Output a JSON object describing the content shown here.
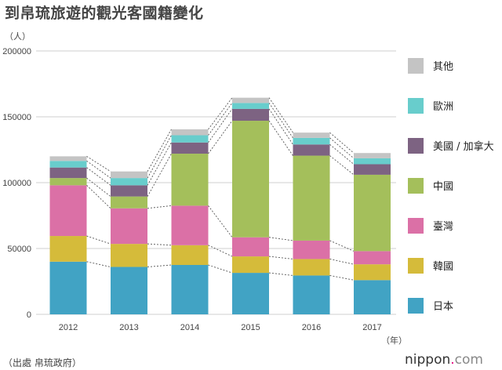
{
  "title": "到帛琉旅遊的觀光客國籍變化",
  "y_unit": "（人）",
  "x_unit": "（年）",
  "source": "（出處  帛琉政府）",
  "brand": {
    "prefix": "nippon",
    "dot": ".",
    "suffix": "com"
  },
  "chart_data": {
    "type": "bar",
    "stacked": true,
    "categories": [
      "2012",
      "2013",
      "2014",
      "2015",
      "2016",
      "2017"
    ],
    "ylim": [
      0,
      200000
    ],
    "yticks": [
      0,
      50000,
      100000,
      150000,
      200000
    ],
    "ytick_labels": [
      "0",
      "50000",
      "100000",
      "150000",
      "200000"
    ],
    "series": [
      {
        "name": "日本",
        "color": "#41a3c4",
        "values": [
          40000,
          36000,
          37500,
          31500,
          29500,
          26000
        ]
      },
      {
        "name": "韓國",
        "color": "#d5bb3a",
        "values": [
          19500,
          17500,
          15000,
          12500,
          12500,
          12000
        ]
      },
      {
        "name": "臺灣",
        "color": "#db70a6",
        "values": [
          38500,
          27000,
          30000,
          14500,
          14000,
          10000
        ]
      },
      {
        "name": "中國",
        "color": "#a4bf5b",
        "values": [
          5500,
          9000,
          39500,
          88500,
          64500,
          58000
        ]
      },
      {
        "name": "美國 / 加拿大",
        "color": "#7d6382",
        "values": [
          8000,
          8500,
          8500,
          9000,
          8500,
          8000
        ]
      },
      {
        "name": "歐洲",
        "color": "#68cdcc",
        "values": [
          5000,
          5500,
          5500,
          4500,
          5000,
          4500
        ]
      },
      {
        "name": "其他",
        "color": "#c4c4c4",
        "values": [
          3500,
          5000,
          4500,
          4000,
          4000,
          4000
        ]
      }
    ],
    "legend_position": "right",
    "grid": true
  }
}
